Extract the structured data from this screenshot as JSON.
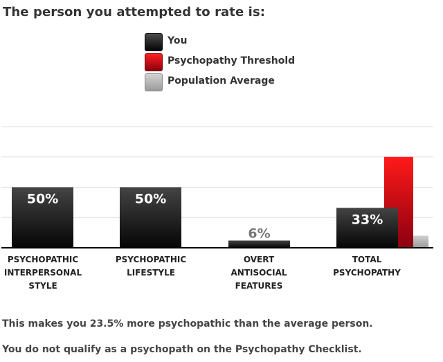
{
  "heading": "The person you attempted to rate is:",
  "legend": [
    {
      "key": "you",
      "label": "You"
    },
    {
      "key": "threshold",
      "label": "Psychopathy Threshold"
    },
    {
      "key": "population",
      "label": "Population Average"
    }
  ],
  "chart_data": {
    "type": "bar",
    "categories": [
      [
        "PSYCHOPATHIC",
        "INTERPERSONAL",
        "STYLE"
      ],
      [
        "PSYCHOPATHIC",
        "LIFESTYLE"
      ],
      [
        "OVERT",
        "ANTISOCIAL",
        "FEATURES"
      ],
      [
        "TOTAL",
        "PSYCHOPATHY"
      ]
    ],
    "series": [
      {
        "name": "You",
        "values": [
          50,
          50,
          6,
          33
        ],
        "labels": [
          "50%",
          "50%",
          "6%",
          "33%"
        ]
      },
      {
        "name": "Psychopathy Threshold",
        "values": [
          null,
          null,
          null,
          75
        ]
      },
      {
        "name": "Population Average",
        "values": [
          null,
          null,
          null,
          10
        ]
      }
    ],
    "ylim": [
      0,
      100
    ],
    "grid": true,
    "colors": {
      "you": "#111111",
      "threshold": "#d4001a",
      "population": "#b0b0b0",
      "grid": "#dddddd",
      "axis": "#000000"
    }
  },
  "notes": [
    "This makes you 23.5% more psychopathic than the average person.",
    "You do not qualify as a psychopath on the Psychopathy Checklist."
  ]
}
